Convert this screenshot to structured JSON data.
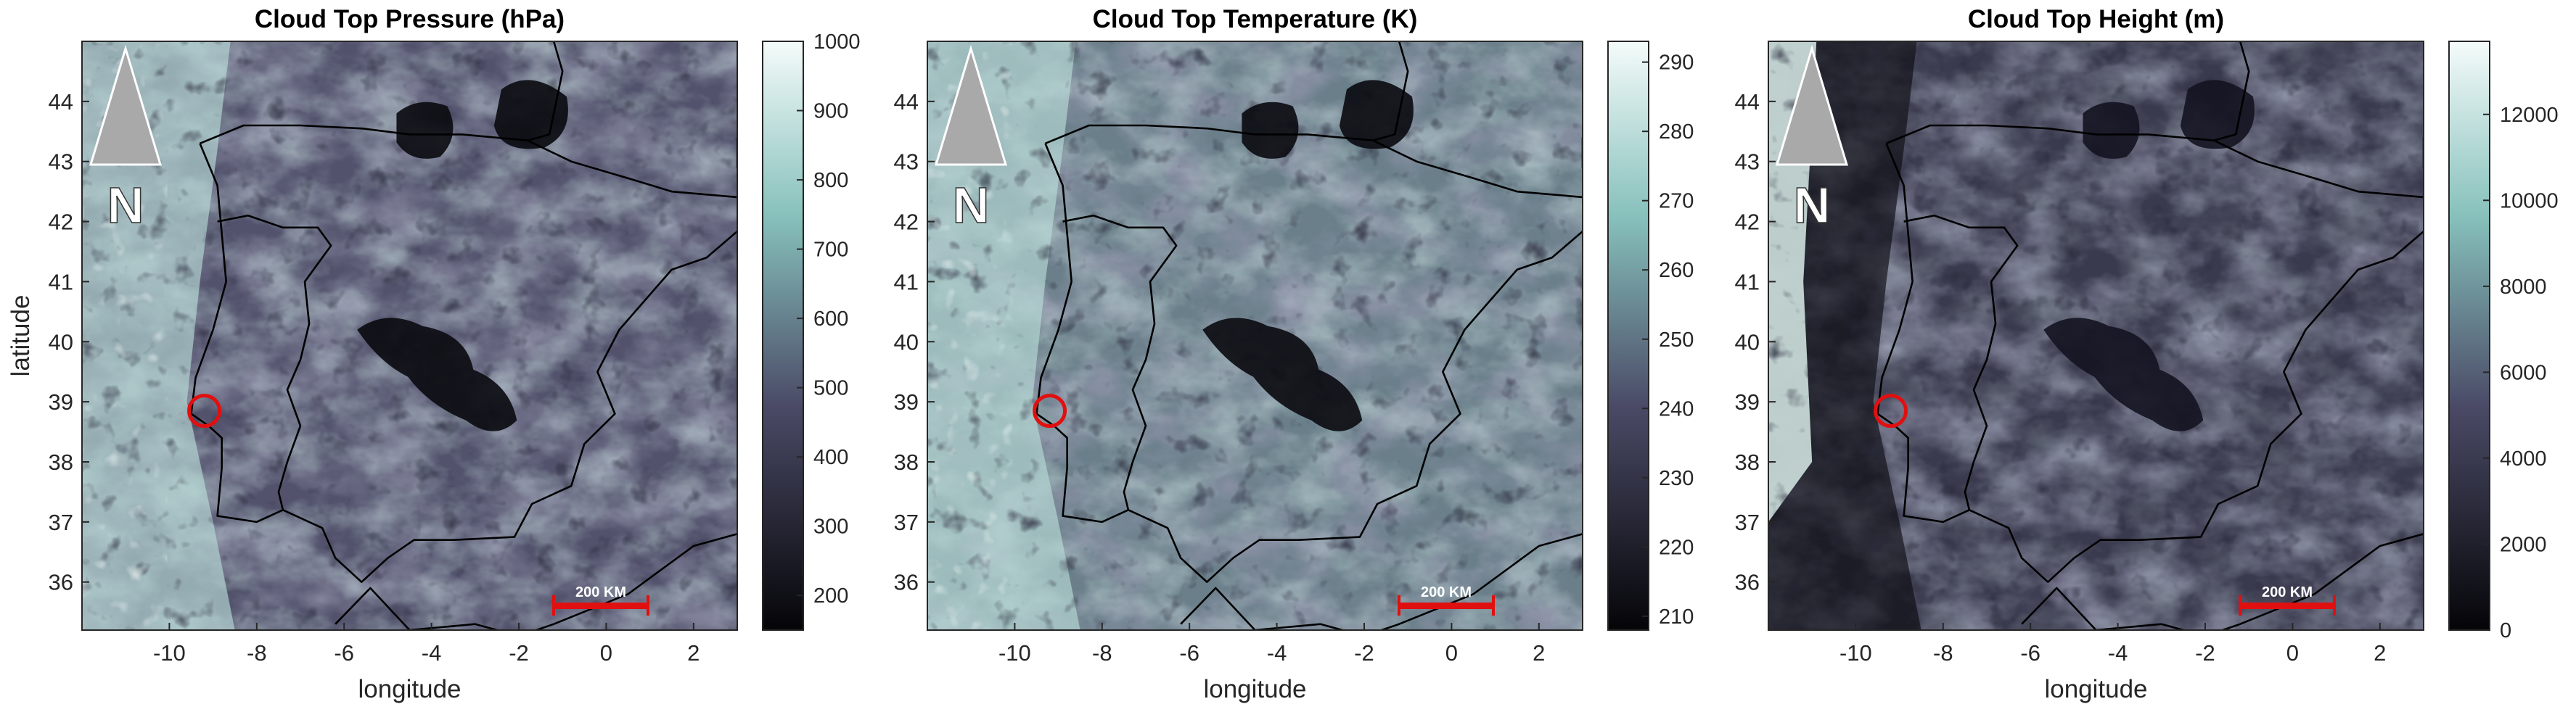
{
  "panels": [
    {
      "title": "Cloud Top Pressure (hPa)",
      "ylabel": "latitude",
      "xlabel": "longitude",
      "colorbar_ticks": [
        "1000",
        "900",
        "800",
        "700",
        "600",
        "500",
        "400",
        "300",
        "200"
      ],
      "scale_label": "200 KM",
      "north_label": "N"
    },
    {
      "title": "Cloud Top Temperature (K)",
      "ylabel": "",
      "xlabel": "longitude",
      "colorbar_ticks": [
        "290",
        "280",
        "270",
        "260",
        "250",
        "240",
        "230",
        "220",
        "210"
      ],
      "scale_label": "200 KM",
      "north_label": "N"
    },
    {
      "title": "Cloud Top Height (m)",
      "ylabel": "",
      "xlabel": "longitude",
      "colorbar_ticks": [
        "12000",
        "10000",
        "8000",
        "6000",
        "4000",
        "2000",
        "0"
      ],
      "scale_label": "200 KM",
      "north_label": "N"
    }
  ],
  "x_ticks": [
    "-10",
    "-8",
    "-6",
    "-4",
    "-2",
    "0",
    "2"
  ],
  "y_ticks": [
    "44",
    "43",
    "42",
    "41",
    "40",
    "39",
    "38",
    "37",
    "36"
  ],
  "colors": {
    "circle": "#e01010",
    "scalebar": "#e01010",
    "colormap_top": "#f4fbfa",
    "colormap_mid": "#86c0bb",
    "colormap_low": "#3e3e5a",
    "colormap_bottom": "#050508"
  }
}
